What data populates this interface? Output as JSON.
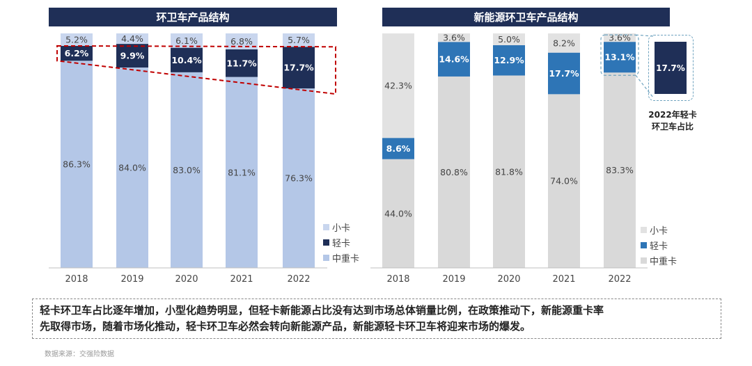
{
  "chart_data": [
    {
      "type": "bar",
      "stacked": true,
      "title": "环卫车产品结构",
      "categories": [
        "2018",
        "2019",
        "2020",
        "2021",
        "2022"
      ],
      "series": [
        {
          "name": "中重卡",
          "values": [
            86.3,
            84.0,
            83.0,
            81.1,
            76.3
          ],
          "labels": [
            "86.3%",
            "84.0%",
            "83.0%",
            "81.1%",
            "76.3%"
          ],
          "color": "#b4c7e7"
        },
        {
          "name": "轻卡",
          "values": [
            6.2,
            9.9,
            10.4,
            11.7,
            17.7
          ],
          "labels": [
            "6.2%",
            "9.9%",
            "10.4%",
            "11.7%",
            "17.7%"
          ],
          "color": "#1f2f57"
        },
        {
          "name": "小卡",
          "values": [
            5.2,
            4.4,
            6.1,
            6.8,
            5.7
          ],
          "labels": [
            "5.2%",
            "4.4%",
            "6.1%",
            "6.8%",
            "5.7%"
          ],
          "color": "#c9d6ee"
        }
      ],
      "legend_order": [
        "小卡",
        "轻卡",
        "中重卡"
      ],
      "legend_position": "right",
      "ylim": [
        0,
        100
      ],
      "grid": false,
      "annotation": "red dashed trend outline around the 轻卡 segments"
    },
    {
      "type": "bar",
      "stacked": true,
      "title": "新能源环卫车产品结构",
      "categories": [
        "2018",
        "2019",
        "2020",
        "2021",
        "2022"
      ],
      "series": [
        {
          "name": "中重卡",
          "values": [
            44.0,
            80.8,
            81.8,
            74.0,
            83.3
          ],
          "labels": [
            "44.0%",
            "80.8%",
            "81.8%",
            "74.0%",
            "83.3%"
          ],
          "color": "#d9d9d9"
        },
        {
          "name": "轻卡",
          "values": [
            8.6,
            14.6,
            12.9,
            17.7,
            13.1
          ],
          "labels": [
            "8.6%",
            "14.6%",
            "12.9%",
            "17.7%",
            "13.1%"
          ],
          "color": "#2e75b6"
        },
        {
          "name": "小卡",
          "values": [
            42.3,
            3.6,
            5.0,
            8.2,
            3.6
          ],
          "labels": [
            "42.3%",
            "3.6%",
            "5.0%",
            "8.2%",
            "3.6%"
          ],
          "color": "#e2e2e2"
        }
      ],
      "legend_order": [
        "小卡",
        "轻卡",
        "中重卡"
      ],
      "legend_position": "right",
      "ylim": [
        0,
        100
      ],
      "grid": false
    }
  ],
  "callout": {
    "value": "17.7%",
    "caption_line1": "2022年轻卡",
    "caption_line2": "环卫车占比"
  },
  "note": {
    "line1": "轻卡环卫车占比逐年增加，小型化趋势明显，但轻卡新能源占比没有达到市场总体销量比例，在政策推动下，新能源重卡率",
    "line2": "先取得市场，随着市场化推动，轻卡环卫车必然会转向新能源产品，新能源轻卡环卫车将迎来市场的爆发。"
  },
  "source": "数据来源：交强险数据"
}
